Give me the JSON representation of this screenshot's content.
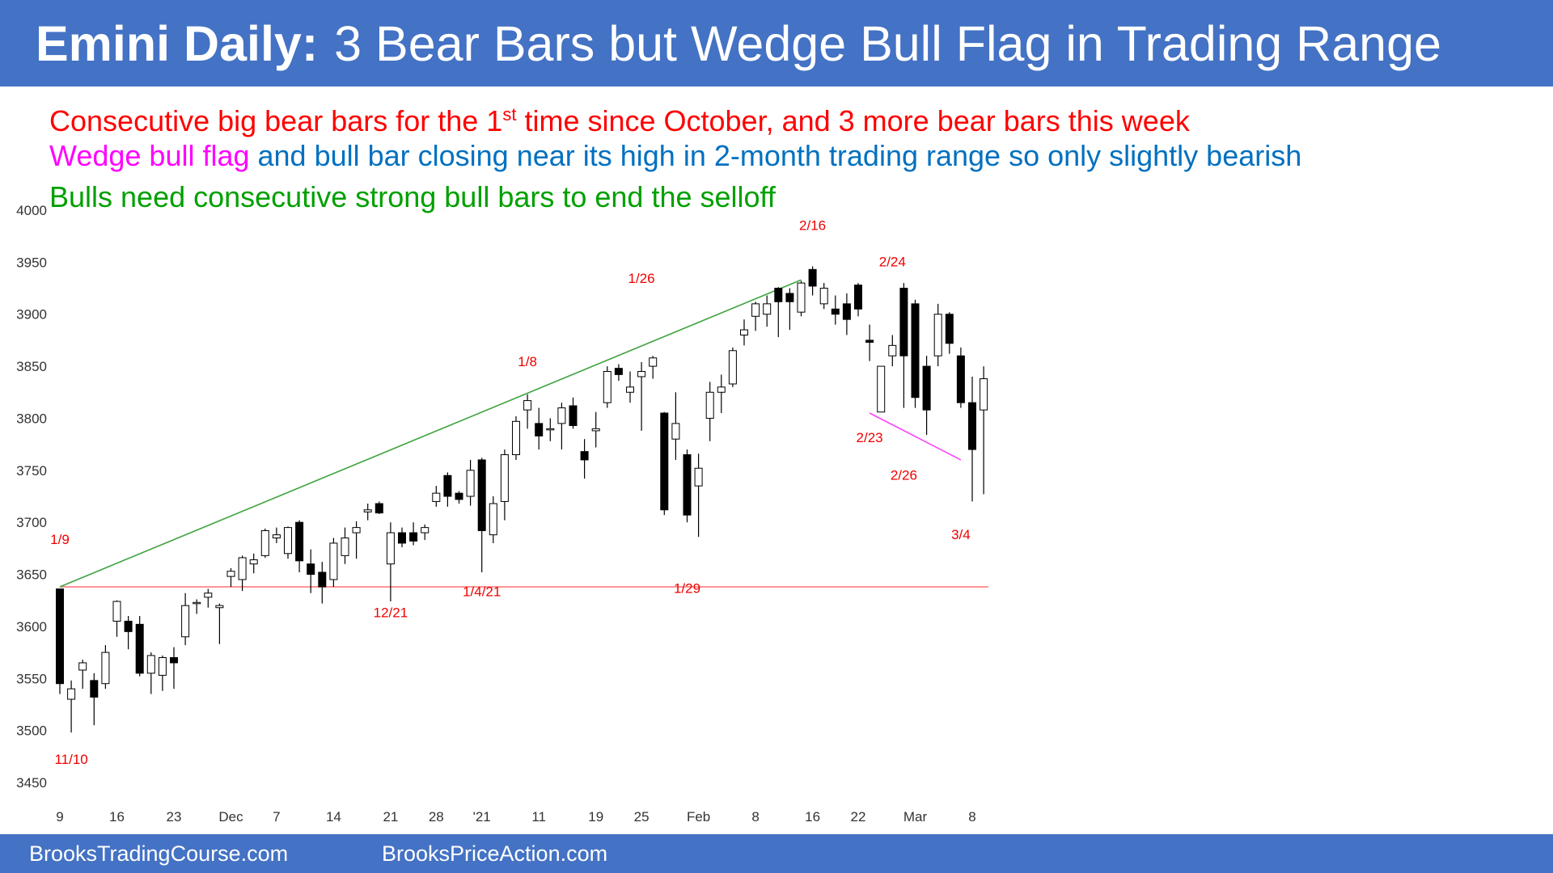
{
  "header": {
    "title_bold": "Emini Daily:",
    "title_rest": "3 Bear Bars but Wedge Bull Flag in Trading Range"
  },
  "notes": {
    "line1": {
      "pre": "Consecutive big bear bars for the 1",
      "sup": "st",
      "post": " time since October, and 3 more bear bars this week"
    },
    "line2": {
      "magenta": "Wedge bull flag",
      "blue": " and bull bar closing near its high in 2-month trading range so only slightly bearish"
    },
    "line3": "Bulls need consecutive strong bull bars to end the selloff"
  },
  "colors": {
    "header_bg": "#4472c4",
    "red_text": "#ff0000",
    "magenta": "#ff00ff",
    "blue_text": "#0070c0",
    "green_text": "#00a000",
    "trend_line": "#3fa33f",
    "support_line": "#ff7070",
    "wedge_line": "#ff40ff",
    "annotation": "#ee0000"
  },
  "footer": {
    "left": "BrooksTradingCourse.com",
    "right": "BrooksPriceAction.com"
  },
  "chart_data": {
    "type": "candlestick",
    "title": "Emini Daily",
    "ylim": [
      3450,
      4000
    ],
    "y_ticks": [
      3450,
      3500,
      3550,
      3600,
      3650,
      3700,
      3750,
      3800,
      3850,
      3900,
      3950,
      4000
    ],
    "x_ticks": [
      {
        "label": "9",
        "i": 0
      },
      {
        "label": "16",
        "i": 5
      },
      {
        "label": "23",
        "i": 10
      },
      {
        "label": "Dec",
        "i": 15
      },
      {
        "label": "7",
        "i": 19
      },
      {
        "label": "14",
        "i": 24
      },
      {
        "label": "21",
        "i": 29
      },
      {
        "label": "28",
        "i": 33
      },
      {
        "label": "'21",
        "i": 37
      },
      {
        "label": "11",
        "i": 42
      },
      {
        "label": "19",
        "i": 47
      },
      {
        "label": "25",
        "i": 51
      },
      {
        "label": "Feb",
        "i": 56
      },
      {
        "label": "8",
        "i": 61
      },
      {
        "label": "16",
        "i": 66
      },
      {
        "label": "22",
        "i": 70
      },
      {
        "label": "Mar",
        "i": 75
      },
      {
        "label": "8",
        "i": 80
      }
    ],
    "ohlc": [
      [
        3636,
        3636,
        3535,
        3545
      ],
      [
        3530,
        3548,
        3498,
        3540
      ],
      [
        3558,
        3568,
        3540,
        3565
      ],
      [
        3548,
        3555,
        3505,
        3532
      ],
      [
        3545,
        3582,
        3540,
        3575
      ],
      [
        3605,
        3625,
        3590,
        3624
      ],
      [
        3605,
        3610,
        3578,
        3595
      ],
      [
        3602,
        3610,
        3552,
        3555
      ],
      [
        3555,
        3575,
        3535,
        3572
      ],
      [
        3553,
        3572,
        3538,
        3570
      ],
      [
        3570,
        3580,
        3540,
        3565
      ],
      [
        3590,
        3632,
        3582,
        3620
      ],
      [
        3622,
        3626,
        3612,
        3623
      ],
      [
        3628,
        3636,
        3618,
        3632
      ],
      [
        3618,
        3622,
        3583,
        3620
      ],
      [
        3648,
        3656,
        3638,
        3653
      ],
      [
        3645,
        3668,
        3634,
        3666
      ],
      [
        3660,
        3670,
        3651,
        3664
      ],
      [
        3668,
        3694,
        3666,
        3692
      ],
      [
        3685,
        3695,
        3680,
        3688
      ],
      [
        3670,
        3696,
        3665,
        3695
      ],
      [
        3700,
        3702,
        3652,
        3663
      ],
      [
        3660,
        3674,
        3632,
        3650
      ],
      [
        3652,
        3662,
        3622,
        3638
      ],
      [
        3645,
        3685,
        3638,
        3680
      ],
      [
        3668,
        3695,
        3660,
        3685
      ],
      [
        3690,
        3701,
        3665,
        3695
      ],
      [
        3710,
        3718,
        3702,
        3712
      ],
      [
        3718,
        3720,
        3708,
        3709
      ],
      [
        3660,
        3700,
        3624,
        3690
      ],
      [
        3690,
        3695,
        3676,
        3680
      ],
      [
        3690,
        3700,
        3678,
        3682
      ],
      [
        3690,
        3698,
        3683,
        3695
      ],
      [
        3720,
        3735,
        3715,
        3728
      ],
      [
        3745,
        3748,
        3715,
        3725
      ],
      [
        3728,
        3730,
        3718,
        3722
      ],
      [
        3725,
        3760,
        3716,
        3750
      ],
      [
        3760,
        3762,
        3652,
        3692
      ],
      [
        3688,
        3725,
        3680,
        3718
      ],
      [
        3720,
        3770,
        3702,
        3765
      ],
      [
        3765,
        3802,
        3760,
        3797
      ],
      [
        3808,
        3823,
        3790,
        3817
      ],
      [
        3795,
        3810,
        3770,
        3783
      ],
      [
        3790,
        3800,
        3778,
        3790
      ],
      [
        3795,
        3815,
        3770,
        3810
      ],
      [
        3812,
        3820,
        3790,
        3793
      ],
      [
        3768,
        3780,
        3742,
        3760
      ],
      [
        3788,
        3806,
        3772,
        3790
      ],
      [
        3815,
        3850,
        3810,
        3845
      ],
      [
        3848,
        3852,
        3836,
        3842
      ],
      [
        3825,
        3845,
        3815,
        3830
      ],
      [
        3840,
        3854,
        3788,
        3845
      ],
      [
        3850,
        3860,
        3838,
        3858
      ],
      [
        3805,
        3806,
        3707,
        3712
      ],
      [
        3780,
        3825,
        3760,
        3795
      ],
      [
        3765,
        3770,
        3700,
        3707
      ],
      [
        3735,
        3766,
        3686,
        3752
      ],
      [
        3800,
        3835,
        3778,
        3825
      ],
      [
        3825,
        3842,
        3805,
        3830
      ],
      [
        3833,
        3868,
        3830,
        3865
      ],
      [
        3880,
        3895,
        3870,
        3885
      ],
      [
        3898,
        3912,
        3884,
        3910
      ],
      [
        3900,
        3918,
        3888,
        3910
      ],
      [
        3925,
        3926,
        3878,
        3912
      ],
      [
        3920,
        3925,
        3885,
        3912
      ],
      [
        3902,
        3932,
        3898,
        3930
      ],
      [
        3943,
        3946,
        3918,
        3927
      ],
      [
        3910,
        3930,
        3905,
        3925
      ],
      [
        3905,
        3918,
        3890,
        3900
      ],
      [
        3910,
        3920,
        3880,
        3895
      ],
      [
        3928,
        3930,
        3898,
        3905
      ],
      [
        3875,
        3890,
        3855,
        3873
      ],
      [
        3806,
        3850,
        3806,
        3850
      ],
      [
        3860,
        3880,
        3850,
        3870
      ],
      [
        3925,
        3930,
        3810,
        3860
      ],
      [
        3910,
        3914,
        3810,
        3820
      ],
      [
        3850,
        3860,
        3784,
        3808
      ],
      [
        3860,
        3910,
        3850,
        3900
      ],
      [
        3900,
        3902,
        3862,
        3872
      ],
      [
        3860,
        3868,
        3810,
        3815
      ],
      [
        3815,
        3840,
        3720,
        3770
      ],
      [
        3808,
        3850,
        3727,
        3838
      ]
    ],
    "trend_line": {
      "from": {
        "i": 0,
        "price": 3638
      },
      "to": {
        "i": 65,
        "price": 3933
      }
    },
    "support_line": {
      "price": 3638
    },
    "wedge_line": {
      "from": {
        "i": 71,
        "price": 3805
      },
      "to": {
        "i": 79,
        "price": 3760
      }
    },
    "annotations": [
      {
        "text": "1/9",
        "i": 0,
        "price": 3679
      },
      {
        "text": "11/10",
        "i": 1,
        "price": 3468
      },
      {
        "text": "12/21",
        "i": 29,
        "price": 3609
      },
      {
        "text": "1/4/21",
        "i": 37,
        "price": 3629
      },
      {
        "text": "1/8",
        "i": 41,
        "price": 3850
      },
      {
        "text": "1/26",
        "i": 51,
        "price": 3930
      },
      {
        "text": "1/29",
        "i": 55,
        "price": 3632
      },
      {
        "text": "2/16",
        "i": 66,
        "price": 3981
      },
      {
        "text": "2/24",
        "i": 73,
        "price": 3946
      },
      {
        "text": "2/23",
        "i": 71,
        "price": 3777
      },
      {
        "text": "2/26",
        "i": 74,
        "price": 3741
      },
      {
        "text": "3/4",
        "i": 79,
        "price": 3684
      }
    ]
  }
}
